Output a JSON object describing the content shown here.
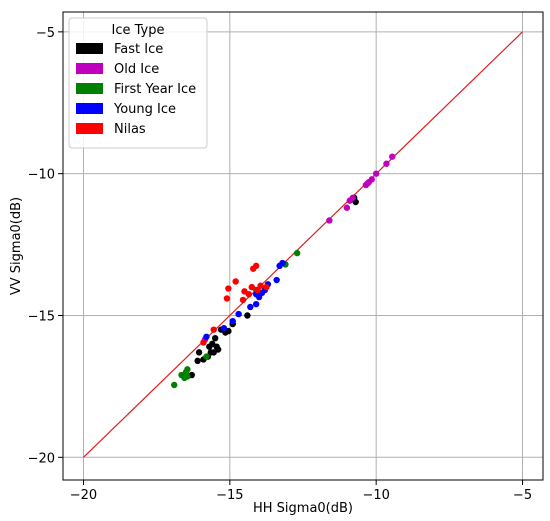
{
  "chart_data": {
    "type": "scatter",
    "xlabel": "HH Sigma0(dB)",
    "ylabel": "VV Sigma0(dB)",
    "xlim": [
      -20.7,
      -4.3
    ],
    "ylim": [
      -20.8,
      -4.3
    ],
    "xticks": [
      -20,
      -15,
      -10,
      -5
    ],
    "yticks": [
      -20,
      -15,
      -10,
      -5
    ],
    "xtick_labels": [
      "−20",
      "−15",
      "−10",
      "−5"
    ],
    "ytick_labels": [
      "−20",
      "−15",
      "−10",
      "−5"
    ],
    "grid": true,
    "legend": {
      "title": "Ice Type",
      "placement": "top-left"
    },
    "reference_line": {
      "color": "#e41a1c",
      "points": [
        [
          -20,
          -20
        ],
        [
          -5,
          -5
        ]
      ]
    },
    "series": [
      {
        "name": "Fast Ice",
        "color": "#000000",
        "points": [
          [
            -16.1,
            -16.6
          ],
          [
            -16.05,
            -16.3
          ],
          [
            -15.9,
            -16.55
          ],
          [
            -15.75,
            -16.45
          ],
          [
            -15.7,
            -16.1
          ],
          [
            -15.65,
            -16.3
          ],
          [
            -15.6,
            -16.0
          ],
          [
            -15.55,
            -16.3
          ],
          [
            -15.5,
            -15.8
          ],
          [
            -15.45,
            -16.1
          ],
          [
            -15.4,
            -16.2
          ],
          [
            -15.3,
            -15.5
          ],
          [
            -15.15,
            -15.6
          ],
          [
            -15.05,
            -15.55
          ],
          [
            -14.9,
            -15.3
          ],
          [
            -14.4,
            -15.0
          ],
          [
            -16.3,
            -17.1
          ],
          [
            -10.7,
            -11.0
          ],
          [
            -10.75,
            -10.85
          ]
        ]
      },
      {
        "name": "Old Ice",
        "color": "#bf00bf",
        "points": [
          [
            -9.45,
            -9.4
          ],
          [
            -9.65,
            -9.65
          ],
          [
            -10.0,
            -10.0
          ],
          [
            -10.15,
            -10.2
          ],
          [
            -10.25,
            -10.3
          ],
          [
            -10.3,
            -10.35
          ],
          [
            -10.35,
            -10.4
          ],
          [
            -10.8,
            -10.85
          ],
          [
            -10.9,
            -10.95
          ],
          [
            -11.0,
            -11.2
          ],
          [
            -11.6,
            -11.65
          ],
          [
            -15.85,
            -15.85
          ]
        ]
      },
      {
        "name": "First Year Ice",
        "color": "#008000",
        "points": [
          [
            -16.9,
            -17.45
          ],
          [
            -16.65,
            -17.1
          ],
          [
            -16.55,
            -17.2
          ],
          [
            -16.5,
            -17.0
          ],
          [
            -16.45,
            -16.9
          ],
          [
            -16.45,
            -17.15
          ],
          [
            -15.8,
            -16.45
          ],
          [
            -13.1,
            -13.2
          ],
          [
            -12.7,
            -12.8
          ],
          [
            -14.1,
            -14.1
          ]
        ]
      },
      {
        "name": "Young Ice",
        "color": "#0000ff",
        "points": [
          [
            -15.8,
            -15.75
          ],
          [
            -15.2,
            -15.45
          ],
          [
            -14.9,
            -15.2
          ],
          [
            -14.7,
            -14.95
          ],
          [
            -14.3,
            -14.7
          ],
          [
            -14.1,
            -14.6
          ],
          [
            -14.0,
            -14.35
          ],
          [
            -14.1,
            -14.25
          ],
          [
            -13.9,
            -14.2
          ],
          [
            -13.8,
            -14.1
          ],
          [
            -13.7,
            -13.9
          ],
          [
            -13.4,
            -13.75
          ],
          [
            -13.3,
            -13.25
          ],
          [
            -13.2,
            -13.15
          ]
        ]
      },
      {
        "name": "Nilas",
        "color": "#ff0000",
        "points": [
          [
            -15.9,
            -15.95
          ],
          [
            -15.55,
            -15.5
          ],
          [
            -15.1,
            -14.4
          ],
          [
            -15.05,
            -14.05
          ],
          [
            -14.8,
            -13.8
          ],
          [
            -14.55,
            -14.45
          ],
          [
            -14.5,
            -14.15
          ],
          [
            -14.35,
            -14.25
          ],
          [
            -14.25,
            -14.0
          ],
          [
            -14.2,
            -13.35
          ],
          [
            -14.1,
            -13.25
          ],
          [
            -14.05,
            -14.1
          ],
          [
            -13.95,
            -13.95
          ],
          [
            -13.75,
            -14.0
          ]
        ]
      }
    ]
  }
}
